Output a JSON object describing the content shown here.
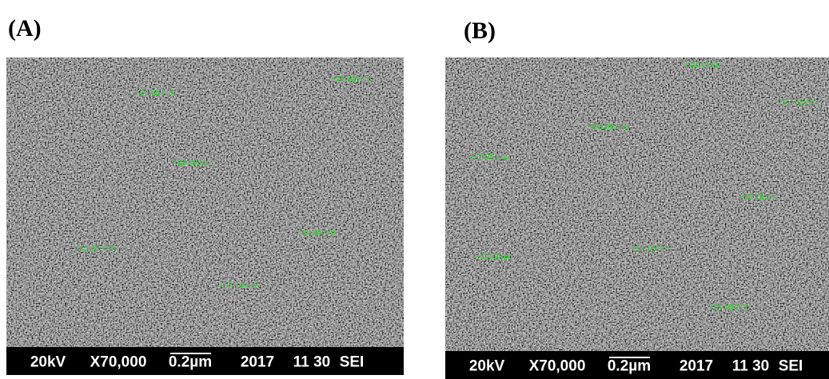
{
  "panels": [
    {
      "label": "(A)",
      "measurements": [
        "14.28 nm",
        "22.64 nm",
        "32.32 nm",
        "10.68 nm",
        "15.07 nm",
        "17.14 nm"
      ],
      "footer": {
        "voltage": "20kV",
        "magnification": "X70,000",
        "scale": "0.2µm",
        "year": "2017",
        "date": "11 30",
        "mode": "SEI"
      }
    },
    {
      "label": "(B)",
      "measurements": [
        "12.70 nm",
        "17.38 nm",
        "28.09 nm",
        "22.32 nm",
        "14.29 nm",
        "11.48 nm",
        "17.14 nm",
        "25.69 nm"
      ],
      "footer": {
        "voltage": "20kV",
        "magnification": "X70,000",
        "scale": "0.2µm",
        "year": "2017",
        "date": "11 30",
        "mode": "SEI"
      }
    }
  ]
}
